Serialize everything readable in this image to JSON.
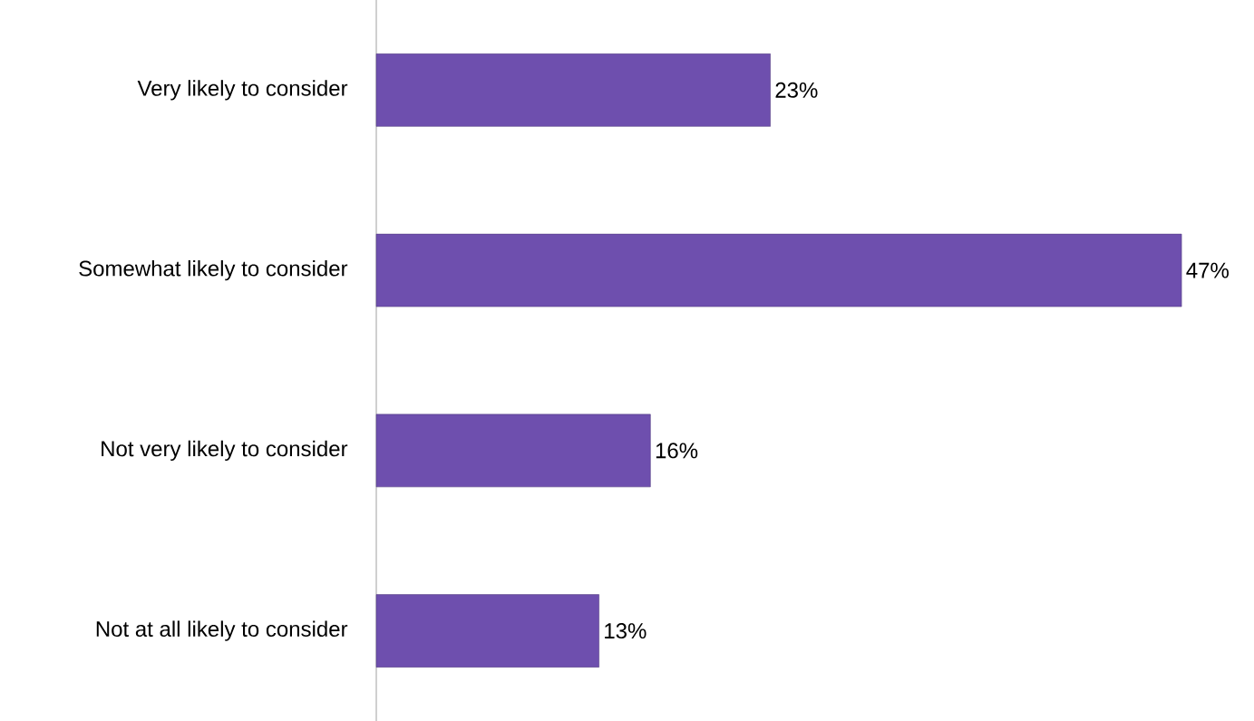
{
  "chart_data": {
    "type": "bar",
    "orientation": "horizontal",
    "categories": [
      "Very likely to consider",
      "Somewhat likely to consider",
      "Not very likely to consider",
      "Not at all likely to consider"
    ],
    "values": [
      23,
      47,
      16,
      13
    ],
    "value_labels": [
      "23%",
      "47%",
      "16%",
      "13%"
    ],
    "color": "#6e4fae"
  }
}
